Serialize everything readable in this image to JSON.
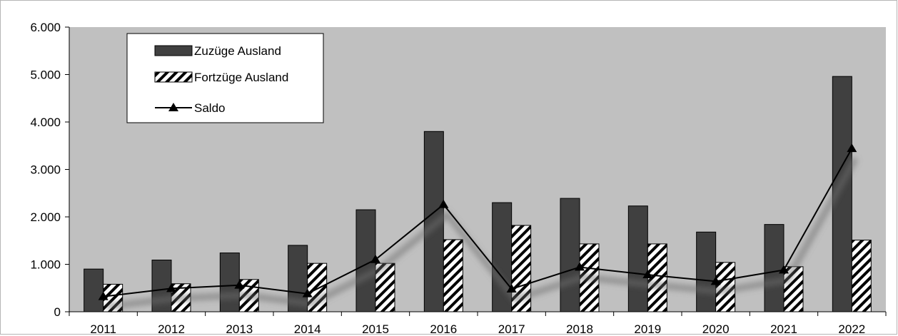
{
  "chart_data": {
    "type": "bar",
    "categories": [
      "2011",
      "2012",
      "2013",
      "2014",
      "2015",
      "2016",
      "2017",
      "2018",
      "2019",
      "2020",
      "2021",
      "2022"
    ],
    "series": [
      {
        "name": "Zuzüge Ausland",
        "kind": "bar",
        "fill": "solid",
        "color": "#404040",
        "values": [
          900,
          1090,
          1240,
          1400,
          2150,
          3800,
          2300,
          2390,
          2230,
          1680,
          1840,
          4960
        ]
      },
      {
        "name": "Fortzüge Ausland",
        "kind": "bar",
        "fill": "hatched",
        "color": "#000000",
        "values": [
          580,
          590,
          680,
          1020,
          1020,
          1520,
          1820,
          1430,
          1430,
          1040,
          950,
          1510
        ]
      },
      {
        "name": "Saldo",
        "kind": "line",
        "marker": "triangle",
        "color": "#000000",
        "values": [
          320,
          490,
          560,
          380,
          1100,
          2260,
          480,
          940,
          780,
          640,
          880,
          3440
        ]
      }
    ],
    "yticks": [
      "0",
      "1.000",
      "2.000",
      "3.000",
      "4.000",
      "5.000",
      "6.000"
    ],
    "ylim": [
      0,
      6000
    ],
    "grid": false,
    "legend": "top-left",
    "colors": {
      "plot_background": "#c0c0c0",
      "bar_dark": "#404040"
    }
  }
}
